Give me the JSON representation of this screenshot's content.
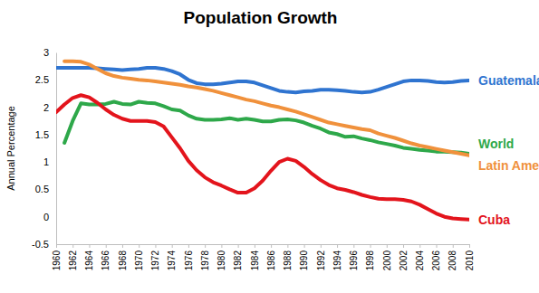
{
  "chart_data": {
    "type": "line",
    "title": "Population Growth",
    "y_label": "Annual Percentage",
    "x": [
      1960,
      1961,
      1962,
      1963,
      1964,
      1965,
      1966,
      1967,
      1968,
      1969,
      1970,
      1971,
      1972,
      1973,
      1974,
      1975,
      1976,
      1977,
      1978,
      1979,
      1980,
      1981,
      1982,
      1983,
      1984,
      1985,
      1986,
      1987,
      1988,
      1989,
      1990,
      1991,
      1992,
      1993,
      1994,
      1995,
      1996,
      1997,
      1998,
      1999,
      2000,
      2001,
      2002,
      2003,
      2004,
      2005,
      2006,
      2007,
      2008,
      2009,
      2010
    ],
    "xlim": [
      1960,
      2010
    ],
    "xticks": [
      1960,
      1962,
      1964,
      1966,
      1968,
      1970,
      1972,
      1974,
      1976,
      1978,
      1980,
      1982,
      1984,
      1986,
      1988,
      1990,
      1992,
      1994,
      1996,
      1998,
      2000,
      2002,
      2004,
      2006,
      2008,
      2010
    ],
    "ylim": [
      -0.5,
      3
    ],
    "yticks": [
      -0.5,
      0,
      0.5,
      1,
      1.5,
      2,
      2.5,
      3
    ],
    "grid": false,
    "series": [
      {
        "name": "Guatemala",
        "color": "#2f74d0",
        "values": [
          2.72,
          2.72,
          2.72,
          2.72,
          2.72,
          2.71,
          2.7,
          2.69,
          2.68,
          2.69,
          2.7,
          2.72,
          2.72,
          2.7,
          2.66,
          2.6,
          2.5,
          2.44,
          2.42,
          2.42,
          2.43,
          2.45,
          2.47,
          2.47,
          2.45,
          2.4,
          2.35,
          2.3,
          2.28,
          2.27,
          2.29,
          2.3,
          2.32,
          2.32,
          2.31,
          2.3,
          2.28,
          2.27,
          2.28,
          2.32,
          2.37,
          2.42,
          2.47,
          2.49,
          2.49,
          2.48,
          2.46,
          2.45,
          2.46,
          2.48,
          2.49
        ]
      },
      {
        "name": "World",
        "color": "#2ea84a",
        "values": [
          null,
          1.35,
          1.75,
          2.07,
          2.05,
          2.05,
          2.06,
          2.1,
          2.06,
          2.05,
          2.1,
          2.08,
          2.07,
          2.02,
          1.96,
          1.94,
          1.85,
          1.79,
          1.77,
          1.77,
          1.78,
          1.8,
          1.77,
          1.79,
          1.77,
          1.74,
          1.74,
          1.77,
          1.78,
          1.76,
          1.72,
          1.66,
          1.61,
          1.54,
          1.51,
          1.46,
          1.47,
          1.43,
          1.4,
          1.36,
          1.33,
          1.3,
          1.26,
          1.24,
          1.22,
          1.21,
          1.19,
          1.19,
          1.18,
          1.17,
          1.15
        ]
      },
      {
        "name": "Latin America",
        "color": "#f0913c",
        "values": [
          null,
          2.84,
          2.84,
          2.83,
          2.78,
          2.7,
          2.62,
          2.57,
          2.54,
          2.52,
          2.5,
          2.49,
          2.47,
          2.45,
          2.43,
          2.41,
          2.38,
          2.36,
          2.33,
          2.3,
          2.26,
          2.22,
          2.18,
          2.14,
          2.11,
          2.07,
          2.03,
          2.0,
          1.96,
          1.92,
          1.87,
          1.82,
          1.77,
          1.72,
          1.69,
          1.66,
          1.63,
          1.6,
          1.58,
          1.52,
          1.48,
          1.44,
          1.39,
          1.34,
          1.3,
          1.27,
          1.24,
          1.21,
          1.18,
          1.15,
          1.12
        ]
      },
      {
        "name": "Cuba",
        "color": "#e3141c",
        "values": [
          1.91,
          2.05,
          2.17,
          2.22,
          2.18,
          2.08,
          1.96,
          1.86,
          1.79,
          1.75,
          1.75,
          1.75,
          1.73,
          1.65,
          1.45,
          1.25,
          1.02,
          0.85,
          0.72,
          0.63,
          0.57,
          0.5,
          0.44,
          0.44,
          0.52,
          0.66,
          0.84,
          1.0,
          1.06,
          1.02,
          0.91,
          0.78,
          0.67,
          0.58,
          0.52,
          0.49,
          0.45,
          0.4,
          0.36,
          0.33,
          0.32,
          0.32,
          0.31,
          0.28,
          0.22,
          0.14,
          0.06,
          0.0,
          -0.03,
          -0.04,
          -0.05
        ]
      }
    ]
  }
}
